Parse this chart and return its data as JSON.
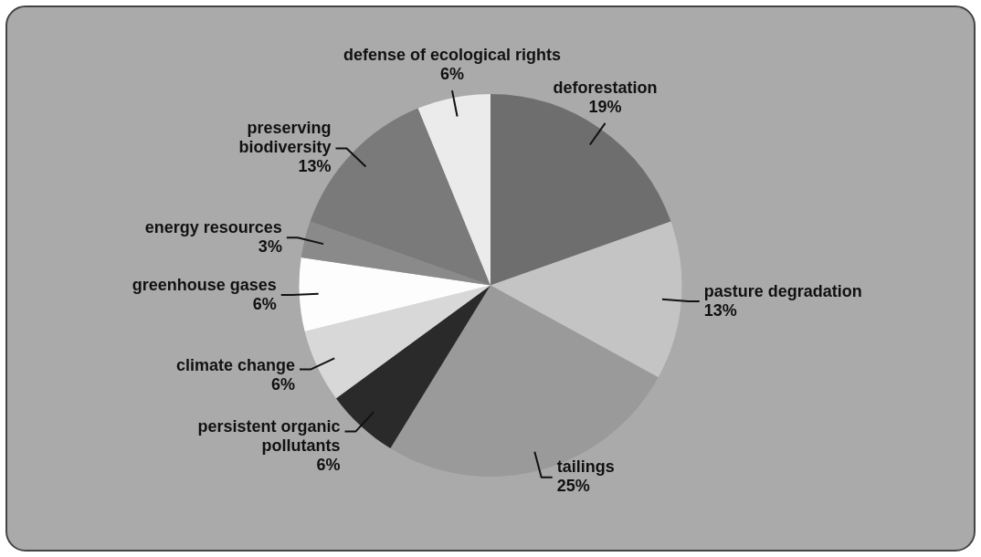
{
  "chart_data": {
    "type": "pie",
    "categories": [
      "deforestation",
      "pasture degradation",
      "tailings",
      "persistent organic pollutants",
      "climate change",
      "greenhouse gases",
      "energy resources",
      "preserving biodiversity",
      "defense of ecological rights"
    ],
    "values": [
      19,
      13,
      25,
      6,
      6,
      6,
      3,
      13,
      6
    ],
    "value_labels": [
      "19%",
      "13%",
      "25%",
      "6%",
      "6%",
      "6%",
      "3%",
      "13%",
      "6%"
    ],
    "colors": [
      "#6e6e6e",
      "#c4c4c4",
      "#9a9a9a",
      "#2a2a2a",
      "#d8d8d8",
      "#fdfdfd",
      "#8a8a8a",
      "#7a7a7a",
      "#ebebeb"
    ],
    "legend": false
  }
}
